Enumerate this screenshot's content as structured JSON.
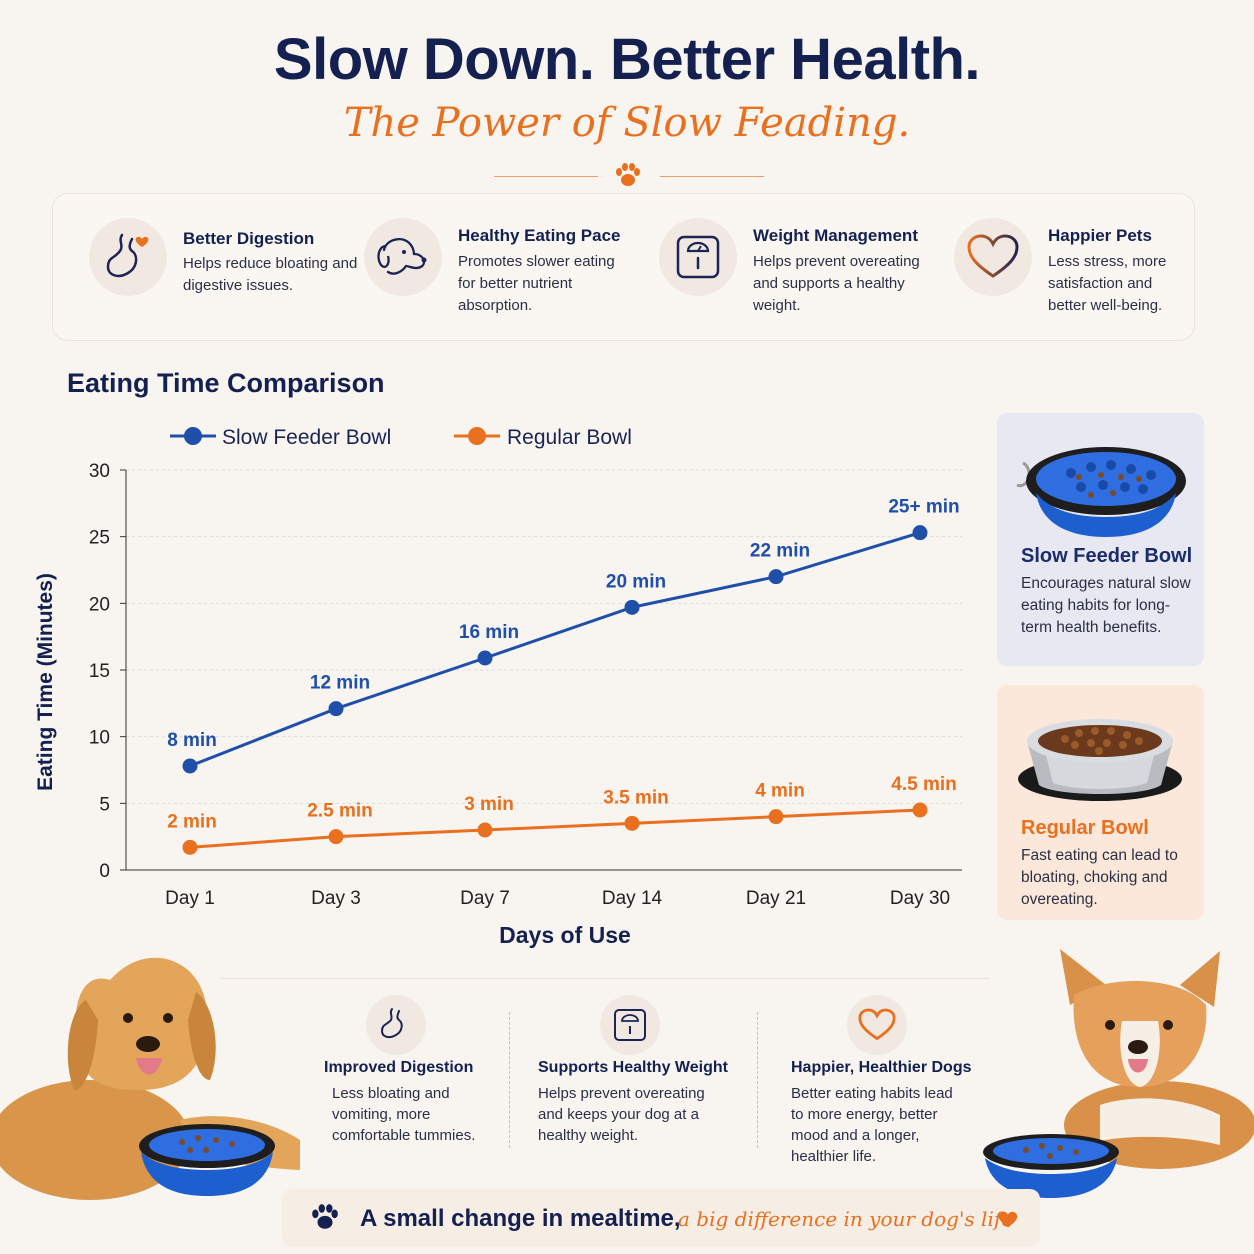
{
  "header": {
    "title": "Slow Down. Better Health.",
    "subtitle": "The Power of Slow Feading."
  },
  "benefits": [
    {
      "title": "Better Digestion",
      "desc": "Helps reduce bloating and digestive issues.",
      "icon": "stomach-heart-icon"
    },
    {
      "title": "Healthy Eating Pace",
      "desc": "Promotes slower eating for better nutrient absorption.",
      "icon": "dog-head-icon"
    },
    {
      "title": "Weight Management",
      "desc": "Helps prevent overeating and supports a healthy weight.",
      "icon": "scale-icon"
    },
    {
      "title": "Happier Pets",
      "desc": "Less stress, more satisfaction and better well-being.",
      "icon": "heart-icon"
    }
  ],
  "chart_data": {
    "type": "line",
    "title": "Eating Time Comparison",
    "xlabel": "Days of Use",
    "ylabel": "Eating Time (Minutes)",
    "categories": [
      "Day 1",
      "Day 3",
      "Day 7",
      "Day 14",
      "Day 21",
      "Day 30"
    ],
    "ylim": [
      0,
      30
    ],
    "yticks": [
      0,
      5,
      10,
      15,
      20,
      25,
      30
    ],
    "grid": true,
    "legend_position": "top-left",
    "series": [
      {
        "name": "Slow Feeder Bowl",
        "color": "#1f4fa8",
        "values": [
          7.8,
          12.1,
          15.9,
          19.7,
          22.0,
          25.3
        ],
        "labels": [
          "8 min",
          "12 min",
          "16 min",
          "20 min",
          "22 min",
          "25+ min"
        ]
      },
      {
        "name": "Regular Bowl",
        "color": "#e8701f",
        "values": [
          1.7,
          2.5,
          3.0,
          3.5,
          4.0,
          4.5
        ],
        "labels": [
          "2 min",
          "2.5 min",
          "3 min",
          "3.5 min",
          "4 min",
          "4.5 min"
        ]
      }
    ]
  },
  "side_cards": [
    {
      "title": "Slow Feeder Bowl",
      "desc": "Encourages natural slow eating habits for long-term health benefits."
    },
    {
      "title": "Regular Bowl",
      "desc": "Fast eating can lead to bloating, choking and overeating."
    }
  ],
  "bottom_benefits": [
    {
      "title": "Improved Digestion",
      "desc": "Less bloating and vomiting, more comfortable tummies."
    },
    {
      "title": "Supports Healthy Weight",
      "desc": "Helps prevent overeating and keeps your dog at a healthy weight."
    },
    {
      "title": "Happier, Healthier Dogs",
      "desc": "Better eating habits lead to more energy, better mood and a longer, healthier life."
    }
  ],
  "banner": {
    "main": "A small change in mealtime,",
    "script": "a big difference in your dog's life"
  },
  "colors": {
    "navy": "#14204f",
    "blue": "#1f4fa8",
    "orange": "#e8701f",
    "background": "#f8f5f1"
  }
}
